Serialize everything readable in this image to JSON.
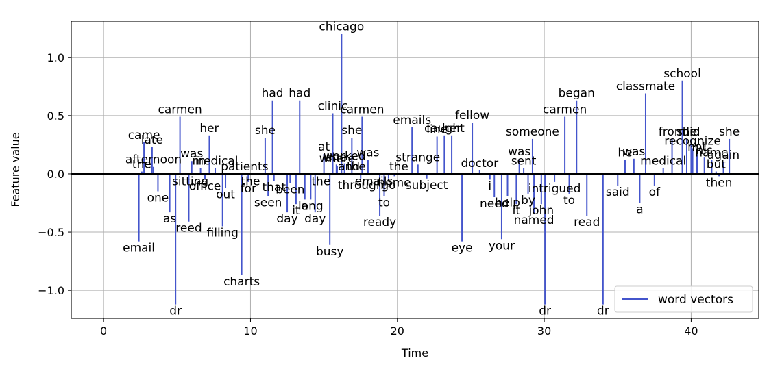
{
  "chart_data": {
    "type": "stem",
    "title": "",
    "xlabel": "Time",
    "ylabel": "Feature value",
    "xlim": [
      -2.2,
      44.6
    ],
    "ylim": [
      -1.24,
      1.31
    ],
    "xticks": [
      0,
      10,
      20,
      30,
      40
    ],
    "yticks": [
      -1.0,
      -0.5,
      0.0,
      0.5,
      1.0
    ],
    "ytick_labels": [
      "−1.0",
      "−0.5",
      "0.0",
      "0.5",
      "1.0"
    ],
    "grid": true,
    "legend": {
      "position": "lower-right",
      "entries": [
        "word vectors"
      ]
    },
    "colors": {
      "stem": "#4455cc",
      "baseline": "#000000",
      "grid": "#b0b0b0"
    },
    "series": [
      {
        "name": "word vectors",
        "points": [
          {
            "word": "email",
            "x": 2.4,
            "y": -0.58
          },
          {
            "word": "the",
            "x": 2.6,
            "y": 0.02
          },
          {
            "word": "came",
            "x": 2.75,
            "y": 0.27
          },
          {
            "word": "late",
            "x": 3.3,
            "y": 0.23
          },
          {
            "word": "afternoon",
            "x": 3.4,
            "y": 0.06
          },
          {
            "word": "one",
            "x": 3.7,
            "y": -0.15
          },
          {
            "word": "as",
            "x": 4.5,
            "y": -0.33
          },
          {
            "word": "dr",
            "x": 4.9,
            "y": -1.12
          },
          {
            "word": "carmen",
            "x": 5.2,
            "y": 0.49
          },
          {
            "word": "reed",
            "x": 5.8,
            "y": -0.41
          },
          {
            "word": "sitting",
            "x": 5.9,
            "y": -0.01
          },
          {
            "word": "was",
            "x": 6.0,
            "y": 0.11
          },
          {
            "word": "in",
            "x": 6.6,
            "y": 0.05
          },
          {
            "word": "office",
            "x": 6.9,
            "y": -0.05
          },
          {
            "word": "her",
            "x": 7.2,
            "y": 0.33
          },
          {
            "word": "medical",
            "x": 7.6,
            "y": 0.05
          },
          {
            "word": "filling",
            "x": 8.1,
            "y": -0.45
          },
          {
            "word": "out",
            "x": 8.3,
            "y": -0.12
          },
          {
            "word": "charts",
            "x": 9.4,
            "y": -0.87
          },
          {
            "word": "patients",
            "x": 9.6,
            "y": 0.0
          },
          {
            "word": "for",
            "x": 9.85,
            "y": -0.07
          },
          {
            "word": "the",
            "x": 10.0,
            "y": -0.01
          },
          {
            "word": "she",
            "x": 11.0,
            "y": 0.31
          },
          {
            "word": "seen",
            "x": 11.2,
            "y": -0.19
          },
          {
            "word": "that",
            "x": 11.6,
            "y": -0.06
          },
          {
            "word": "had",
            "x": 11.5,
            "y": 0.63
          },
          {
            "word": "day",
            "x": 12.5,
            "y": -0.33
          },
          {
            "word": "been",
            "x": 12.7,
            "y": -0.08
          },
          {
            "word": "it",
            "x": 13.1,
            "y": -0.26
          },
          {
            "word": "had",
            "x": 13.35,
            "y": 0.63
          },
          {
            "word": "a",
            "x": 13.7,
            "y": -0.22
          },
          {
            "word": "long",
            "x": 14.1,
            "y": -0.22
          },
          {
            "word": "day",
            "x": 14.4,
            "y": -0.33
          },
          {
            "word": "the",
            "x": 14.8,
            "y": -0.01
          },
          {
            "word": "at",
            "x": 15.0,
            "y": 0.17
          },
          {
            "word": "busy",
            "x": 15.4,
            "y": -0.61
          },
          {
            "word": "clinic",
            "x": 15.6,
            "y": 0.52
          },
          {
            "word": "where",
            "x": 15.9,
            "y": 0.07
          },
          {
            "word": "she",
            "x": 15.85,
            "y": 0.08
          },
          {
            "word": "chicago",
            "x": 16.2,
            "y": 1.2
          },
          {
            "word": "worked",
            "x": 16.4,
            "y": 0.09
          },
          {
            "word": "and",
            "x": 16.7,
            "y": 0.0
          },
          {
            "word": "she",
            "x": 16.9,
            "y": 0.31
          },
          {
            "word": "the",
            "x": 17.2,
            "y": 0.0
          },
          {
            "word": "through",
            "x": 17.5,
            "y": -0.04
          },
          {
            "word": "carmen",
            "x": 17.6,
            "y": 0.49
          },
          {
            "word": "was",
            "x": 18.0,
            "y": 0.12
          },
          {
            "word": "emails",
            "x": 18.4,
            "y": -0.01
          },
          {
            "word": "ready",
            "x": 18.8,
            "y": -0.36
          },
          {
            "word": "to",
            "x": 19.1,
            "y": -0.19
          },
          {
            "word": "go",
            "x": 19.4,
            "y": -0.04
          },
          {
            "word": "home",
            "x": 19.8,
            "y": -0.02
          },
          {
            "word": "the",
            "x": 20.1,
            "y": 0.0
          },
          {
            "word": "emails",
            "x": 21.0,
            "y": 0.4
          },
          {
            "word": "strange",
            "x": 21.4,
            "y": 0.08
          },
          {
            "word": "subject",
            "x": 22.0,
            "y": -0.04
          },
          {
            "word": "line",
            "x": 22.7,
            "y": 0.32
          },
          {
            "word": "caught",
            "x": 23.2,
            "y": 0.33
          },
          {
            "word": "her",
            "x": 23.7,
            "y": 0.33
          },
          {
            "word": "eye",
            "x": 24.4,
            "y": -0.58
          },
          {
            "word": "fellow",
            "x": 25.1,
            "y": 0.44
          },
          {
            "word": "doctor",
            "x": 25.6,
            "y": 0.03
          },
          {
            "word": "i",
            "x": 26.3,
            "y": -0.05
          },
          {
            "word": "need",
            "x": 26.6,
            "y": -0.2
          },
          {
            "word": "your",
            "x": 27.1,
            "y": -0.56
          },
          {
            "word": "help",
            "x": 27.5,
            "y": -0.19
          },
          {
            "word": "it",
            "x": 28.1,
            "y": -0.26
          },
          {
            "word": "was",
            "x": 28.3,
            "y": 0.13
          },
          {
            "word": "sent",
            "x": 28.6,
            "y": 0.05
          },
          {
            "word": "by",
            "x": 28.9,
            "y": -0.17
          },
          {
            "word": "named",
            "x": 29.3,
            "y": -0.34
          },
          {
            "word": "someone",
            "x": 29.2,
            "y": 0.3
          },
          {
            "word": "john",
            "x": 29.8,
            "y": -0.26
          },
          {
            "word": "dr",
            "x": 30.05,
            "y": -1.12
          },
          {
            "word": "intrigued",
            "x": 30.7,
            "y": -0.07
          },
          {
            "word": "carmen",
            "x": 31.4,
            "y": 0.49
          },
          {
            "word": "to",
            "x": 31.7,
            "y": -0.17
          },
          {
            "word": "began",
            "x": 32.2,
            "y": 0.63
          },
          {
            "word": "read",
            "x": 32.9,
            "y": -0.36
          },
          {
            "word": "dr",
            "x": 34.0,
            "y": -1.12
          },
          {
            "word": "said",
            "x": 35.0,
            "y": -0.1
          },
          {
            "word": "he",
            "x": 35.5,
            "y": 0.12
          },
          {
            "word": "was",
            "x": 36.1,
            "y": 0.13
          },
          {
            "word": "a",
            "x": 36.5,
            "y": -0.25
          },
          {
            "word": "classmate",
            "x": 36.9,
            "y": 0.69
          },
          {
            "word": "of",
            "x": 37.5,
            "y": -0.1
          },
          {
            "word": "medical",
            "x": 38.1,
            "y": 0.05
          },
          {
            "word": "from",
            "x": 38.7,
            "y": 0.3
          },
          {
            "word": "school",
            "x": 39.4,
            "y": 0.8
          },
          {
            "word": "she",
            "x": 39.7,
            "y": 0.3
          },
          {
            "word": "did",
            "x": 40.0,
            "y": 0.3
          },
          {
            "word": "recognize",
            "x": 40.1,
            "y": 0.22
          },
          {
            "word": "not",
            "x": 40.4,
            "y": 0.17
          },
          {
            "word": "his",
            "x": 40.9,
            "y": 0.14
          },
          {
            "word": "name",
            "x": 41.4,
            "y": 0.12
          },
          {
            "word": "but",
            "x": 41.7,
            "y": 0.02
          },
          {
            "word": "then",
            "x": 41.9,
            "y": -0.02
          },
          {
            "word": "again",
            "x": 42.2,
            "y": 0.1
          },
          {
            "word": "she",
            "x": 42.6,
            "y": 0.3
          }
        ]
      }
    ]
  }
}
